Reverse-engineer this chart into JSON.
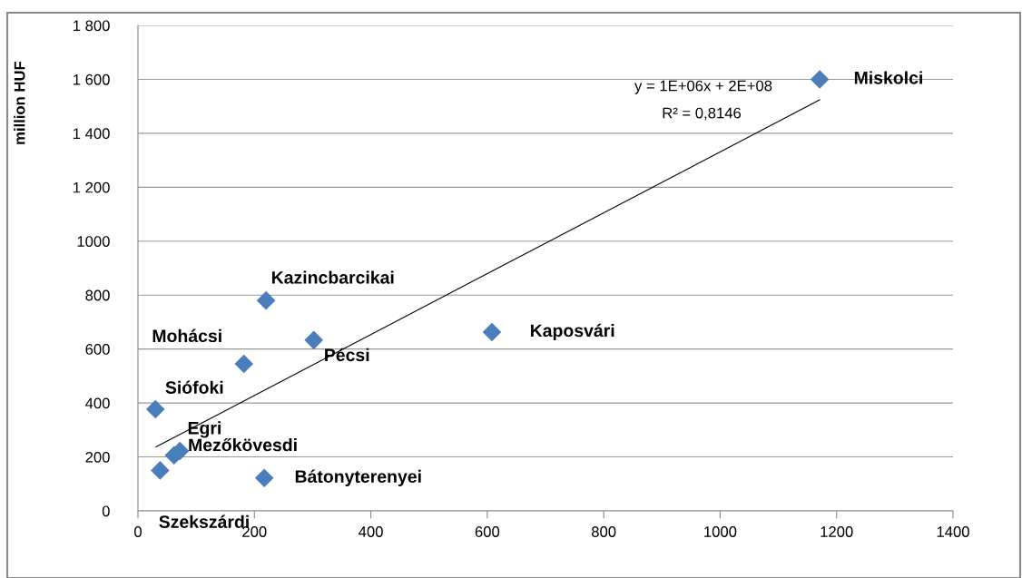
{
  "chart_data": {
    "type": "scatter",
    "ylabel": "million HUF",
    "marker": "diamond",
    "grid": "y",
    "xlim": [
      0,
      1400
    ],
    "xticks": [
      0,
      200,
      400,
      600,
      800,
      1000,
      1200,
      1400
    ],
    "ylim": [
      0,
      1800
    ],
    "yticks": [
      0,
      200,
      400,
      600,
      800,
      {
        "value": 1000,
        "label": "1000"
      },
      {
        "value": 1200,
        "label": "1 200"
      },
      {
        "value": 1400,
        "label": "1 400"
      },
      {
        "value": 1600,
        "label": "1 600"
      },
      {
        "value": 1800,
        "label": "1 800"
      }
    ],
    "series": [
      {
        "color": "#4a7ebb",
        "x": [
          1171,
          220,
          302,
          608,
          182,
          30,
          72,
          62,
          217,
          38
        ],
        "values": [
          1600,
          780,
          633,
          663,
          545,
          377,
          222,
          206,
          122,
          150
        ]
      },
      {
        "type": "line",
        "color": "#000000",
        "marker": "none",
        "x": [
          31,
          1171
        ],
        "values": [
          237,
          1524
        ]
      }
    ],
    "annotations": [
      {
        "text": "Miskolci",
        "x": 1171,
        "y": 1600
      },
      {
        "text": "Kazincbarcikai",
        "x": 220,
        "y": 780
      },
      {
        "text": "Pécsi",
        "x": 302,
        "y": 633
      },
      {
        "text": "Kaposvári",
        "x": 608,
        "y": 663
      },
      {
        "text": "Mohácsi",
        "x": 182,
        "y": 545
      },
      {
        "text": "Siófoki",
        "x": 30,
        "y": 377
      },
      {
        "text": "Egri",
        "x": 72,
        "y": 222
      },
      {
        "text": "Mezőkövesdi",
        "x": 62,
        "y": 206
      },
      {
        "text": "Bátonyterenyei",
        "x": 217,
        "y": 122
      },
      {
        "text": "Szekszárdi",
        "x": 38,
        "y": 150
      },
      "y = 1E+06x + 2E+08",
      "R² = 0,8146"
    ]
  }
}
